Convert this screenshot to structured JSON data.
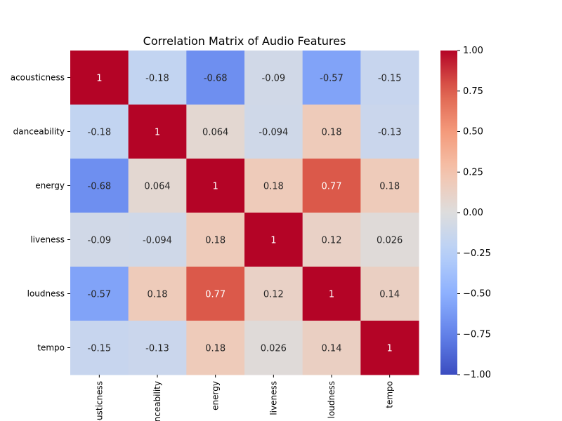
{
  "chart_data": {
    "type": "heatmap",
    "title": "Correlation Matrix of Audio Features",
    "xlabel": "",
    "ylabel": "",
    "row_labels": [
      "acousticness",
      "danceability",
      "energy",
      "liveness",
      "loudness",
      "tempo"
    ],
    "col_labels": [
      "acousticness",
      "danceability",
      "energy",
      "liveness",
      "loudness",
      "tempo"
    ],
    "values": [
      [
        1,
        -0.18,
        -0.68,
        -0.09,
        -0.57,
        -0.15
      ],
      [
        -0.18,
        1,
        0.064,
        -0.094,
        0.18,
        -0.13
      ],
      [
        -0.68,
        0.064,
        1,
        0.18,
        0.77,
        0.18
      ],
      [
        -0.09,
        -0.094,
        0.18,
        1,
        0.12,
        0.026
      ],
      [
        -0.57,
        0.18,
        0.77,
        0.12,
        1,
        0.14
      ],
      [
        -0.15,
        -0.13,
        0.18,
        0.026,
        0.14,
        1
      ]
    ],
    "cell_labels": [
      [
        "1",
        "-0.18",
        "-0.68",
        "-0.09",
        "-0.57",
        "-0.15"
      ],
      [
        "-0.18",
        "1",
        "0.064",
        "-0.094",
        "0.18",
        "-0.13"
      ],
      [
        "-0.68",
        "0.064",
        "1",
        "0.18",
        "0.77",
        "0.18"
      ],
      [
        "-0.09",
        "-0.094",
        "0.18",
        "1",
        "0.12",
        "0.026"
      ],
      [
        "-0.57",
        "0.18",
        "0.77",
        "0.12",
        "1",
        "0.14"
      ],
      [
        "-0.15",
        "-0.13",
        "0.18",
        "0.026",
        "0.14",
        "1"
      ]
    ],
    "colormap": "coolwarm",
    "vmin": -1.0,
    "vmax": 1.0,
    "colorbar_ticks": [
      1.0,
      0.75,
      0.5,
      0.25,
      0.0,
      -0.25,
      -0.5,
      -0.75,
      -1.0
    ],
    "colorbar_tick_labels": [
      "1.00",
      "0.75",
      "0.50",
      "0.25",
      "0.00",
      "−0.25",
      "−0.50",
      "−0.75",
      "−1.00"
    ],
    "grid": false,
    "legend": "colorbar-right"
  }
}
